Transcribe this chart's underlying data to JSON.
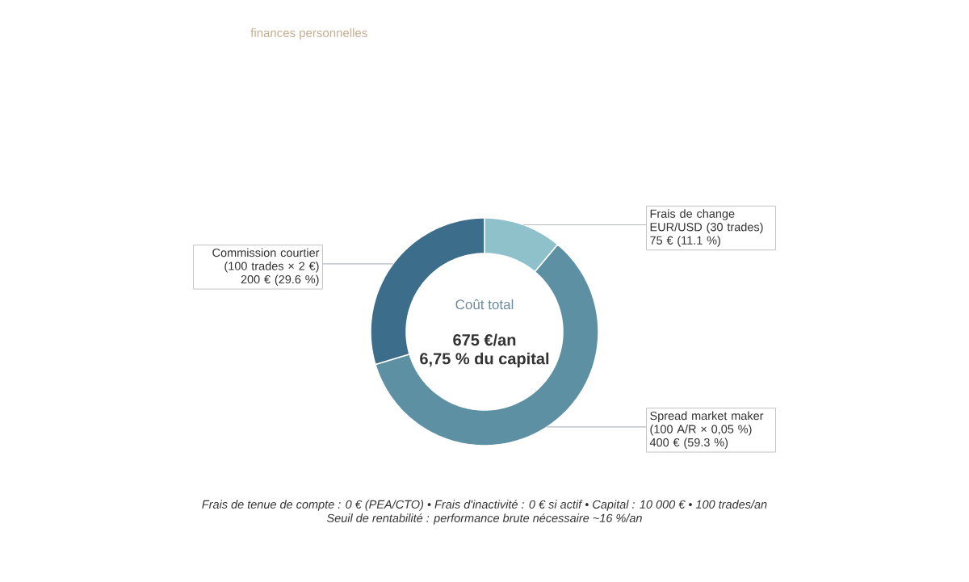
{
  "chart_data": {
    "type": "donut",
    "subtitle": "finances personnelles",
    "categories": [
      "Frais de change EUR/USD (30 trades)",
      "Spread market maker (100 A/R × 0,05 %)",
      "Commission courtier (100 trades × 2 €)"
    ],
    "values": [
      75,
      400,
      200
    ],
    "colors": [
      "#8fc1cb",
      "#5e90a3",
      "#3c6d8a"
    ],
    "value_labels": [
      "75 € (11.1 %)",
      "400 € (59.3 %)",
      "200 € (29.6 %)"
    ],
    "annotations": [
      "Coût total",
      "675 €/an",
      "6,75 % du capital",
      "Frais de tenue de compte : 0 € (PEA/CTO) • Frais d'inactivité : 0 € si actif • Capital : 10 000 € • 100 trades/an",
      "Seuil de rentabilité : performance brute nécessaire ~16 %/an"
    ]
  }
}
